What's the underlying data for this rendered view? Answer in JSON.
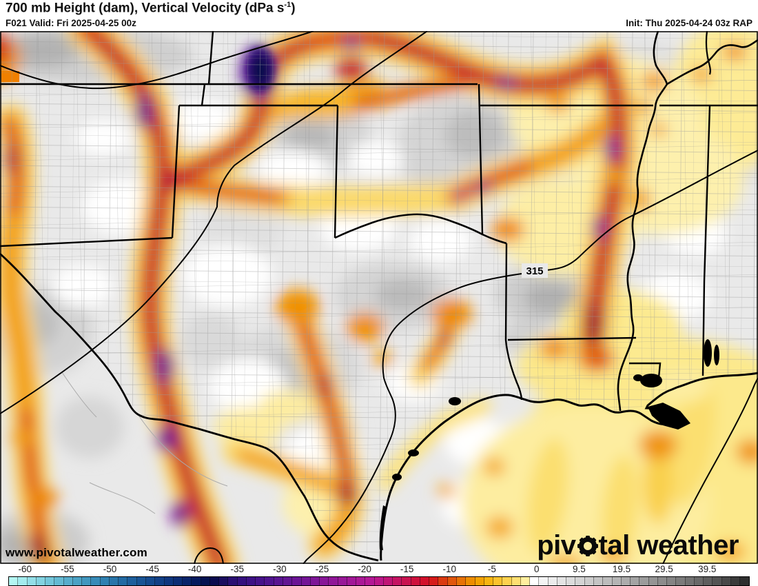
{
  "header": {
    "title_main": "700 mb Height (dam), Vertical Velocity (dPa s",
    "title_sup": "-1",
    "title_end": ")",
    "valid": "F021 Valid: Fri 2025-04-25 00z",
    "init": "Init: Thu 2025-04-24 03z RAP"
  },
  "map": {
    "contour_label": "315",
    "watermark": "www.pivotalweather.com",
    "logo_pre": "piv",
    "logo_post": "tal weather",
    "gear_icon": "gear-icon"
  },
  "colorbar": {
    "ticks": [
      {
        "label": "-60",
        "x": 3.3
      },
      {
        "label": "-55",
        "x": 8.9
      },
      {
        "label": "-50",
        "x": 14.5
      },
      {
        "label": "-45",
        "x": 20.1
      },
      {
        "label": "-40",
        "x": 25.7
      },
      {
        "label": "-35",
        "x": 31.3
      },
      {
        "label": "-30",
        "x": 36.9
      },
      {
        "label": "-25",
        "x": 42.5
      },
      {
        "label": "-20",
        "x": 48.1
      },
      {
        "label": "-15",
        "x": 53.7
      },
      {
        "label": "-10",
        "x": 59.3
      },
      {
        "label": "-5",
        "x": 64.9
      },
      {
        "label": "0",
        "x": 70.8
      },
      {
        "label": "9.5",
        "x": 76.4
      },
      {
        "label": "19.5",
        "x": 82.0
      },
      {
        "label": "29.5",
        "x": 87.6
      },
      {
        "label": "39.5",
        "x": 93.3
      }
    ],
    "colors": [
      "#b4f6f2",
      "#a4ecee",
      "#93dfe8",
      "#83d3e1",
      "#73c6da",
      "#64bad3",
      "#57adcc",
      "#4ba2c5",
      "#4197bf",
      "#388bb8",
      "#2f80b1",
      "#2875aa",
      "#226aa3",
      "#1d5f9c",
      "#185495",
      "#144a8e",
      "#114086",
      "#0e367e",
      "#0b2d75",
      "#08236a",
      "#051a5e",
      "#041250",
      "#0a0a4e",
      "#1a0c5e",
      "#2a0e72",
      "#340f7e",
      "#3d1085",
      "#46118a",
      "#4f128e",
      "#591391",
      "#621493",
      "#6b1495",
      "#741596",
      "#7d1597",
      "#871698",
      "#901698",
      "#991798",
      "#a21798",
      "#ab1897",
      "#b41896",
      "#bb1689",
      "#c01476",
      "#c51363",
      "#c91250",
      "#ce103d",
      "#d20f2b",
      "#d61a19",
      "#db3a10",
      "#e1560b",
      "#e77205",
      "#ed8d01",
      "#f3a203",
      "#f8b511",
      "#fbc32d",
      "#fdd24e",
      "#fee072",
      "#ffef9e",
      "#ffffff",
      "#f4f4f4",
      "#ececec",
      "#e4e4e4",
      "#dcdcdc",
      "#d4d4d4",
      "#cccccc",
      "#c4c4c4",
      "#bcbcbc",
      "#b4b4b4",
      "#acacac",
      "#a4a4a4",
      "#9c9c9c",
      "#949494",
      "#8c8c8c",
      "#848484",
      "#7b7b7b",
      "#727272",
      "#696969",
      "#5f5f5f",
      "#545454",
      "#484848",
      "#3a3a3a",
      "#2e2e2e"
    ]
  },
  "palette": {
    "base_gray": "#e9e9e9",
    "sink_gray": "#bdbdbd",
    "rise_yellow": "#fbd96b",
    "rise_orange": "#f29d0d",
    "rise_red": "#d93916",
    "rise_crimson": "#ba163b",
    "rise_purple": "#7a0f8e",
    "rise_navy": "#10104e",
    "line_black": "#000000",
    "county_gray": "#9a9a9a"
  }
}
